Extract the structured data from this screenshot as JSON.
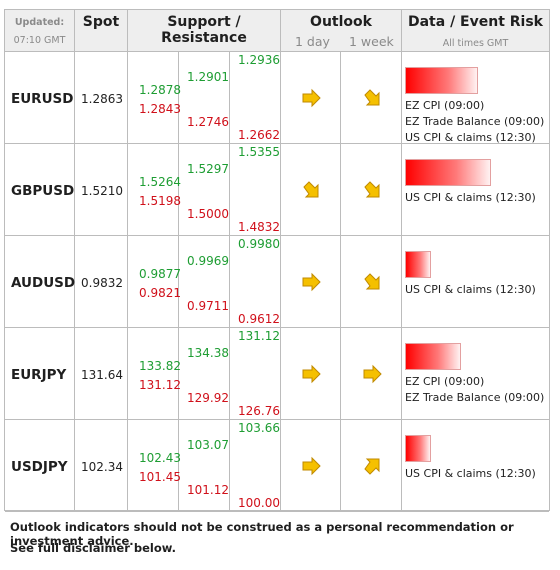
{
  "header": {
    "updated_label": "Updated:",
    "updated_time": "07:10 GMT",
    "spot": "Spot",
    "sr": "Support / Resistance",
    "outlook": "Outlook",
    "day": "1 day",
    "week": "1 week",
    "risk": "Data / Event Risk",
    "risk_sub": "All times GMT"
  },
  "rows": [
    {
      "pair": "EURUSD",
      "spot": "1.2863",
      "s1r": "1.2878",
      "s1s": "1.2843",
      "s2r": "1.2901",
      "s2s": "1.2746",
      "s3r": "1.2936",
      "s3s": "1.2662",
      "day": "right",
      "week": "down-right",
      "risk": 0.85,
      "events": [
        "EZ CPI (09:00)",
        "EZ Trade Balance (09:00)",
        "US CPI & claims (12:30)"
      ]
    },
    {
      "pair": "GBPUSD",
      "spot": "1.5210",
      "s1r": "1.5264",
      "s1s": "1.5198",
      "s2r": "1.5297",
      "s2s": "1.5000",
      "s3r": "1.5355",
      "s3s": "1.4832",
      "day": "down-right",
      "week": "down-right",
      "risk": 1.0,
      "events": [
        "US CPI & claims (12:30)"
      ]
    },
    {
      "pair": "AUDUSD",
      "spot": "0.9832",
      "s1r": "0.9877",
      "s1s": "0.9821",
      "s2r": "0.9969",
      "s2s": "0.9711",
      "s3r": "0.9980",
      "s3s": "0.9612",
      "day": "right",
      "week": "down-right",
      "risk": 0.3,
      "events": [
        "US CPI & claims (12:30)"
      ]
    },
    {
      "pair": "EURJPY",
      "spot": "131.64",
      "s1r": "133.82",
      "s1s": "131.12",
      "s2r": "134.38",
      "s2s": "129.92",
      "s3r": "131.12",
      "s3s": "126.76",
      "day": "right",
      "week": "right",
      "risk": 0.65,
      "events": [
        "EZ CPI (09:00)",
        "EZ Trade Balance (09:00)"
      ]
    },
    {
      "pair": "USDJPY",
      "spot": "102.34",
      "s1r": "102.43",
      "s1s": "101.45",
      "s2r": "103.07",
      "s2s": "101.12",
      "s3r": "103.66",
      "s3s": "100.00",
      "day": "right",
      "week": "up-right",
      "risk": 0.3,
      "events": [
        "US CPI & claims (12:30)"
      ]
    }
  ],
  "footer": {
    "line1": "Outlook indicators should not be construed as a personal recommendation or investment advice.",
    "line2": "See full disclaimer below."
  },
  "colors": {
    "support": "#d0101a",
    "resistance": "#1e9d33",
    "arrow": "#f5c000"
  }
}
